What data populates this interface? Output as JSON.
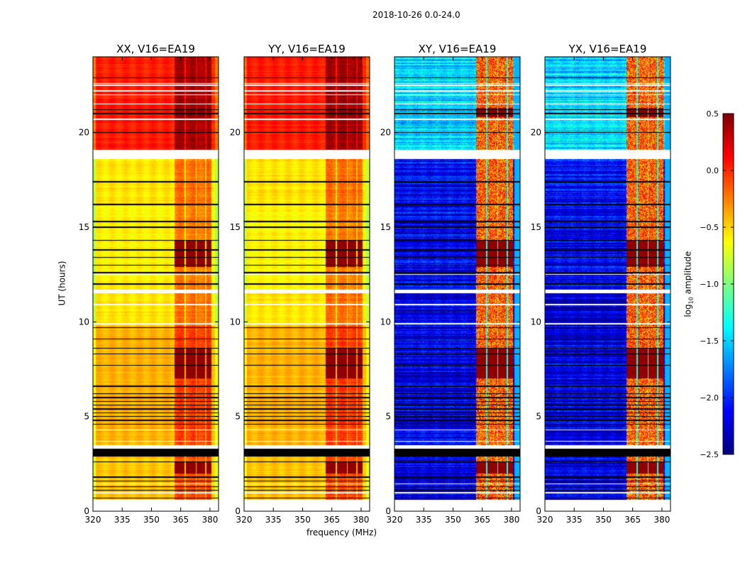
{
  "chart_data": {
    "type": "heatmap",
    "title": "2018-10-26 0.0-24.0",
    "xlabel": "frequency (MHz)",
    "ylabel": "UT (hours)",
    "xlim": [
      320,
      384.4
    ],
    "ylim": [
      0,
      24
    ],
    "xticks": [
      320,
      335,
      350,
      365,
      380
    ],
    "yticks": [
      0,
      5,
      10,
      15,
      20
    ],
    "colorbar": {
      "label": "log10 amplitude",
      "label_main": "log",
      "label_sub": "10",
      "label_rest": " amplitude",
      "range": [
        -2.5,
        0.5
      ],
      "ticks": [
        0.5,
        0.0,
        -0.5,
        -1.0,
        -1.5,
        -2.0,
        -2.5
      ],
      "tick_labels": [
        "0.5",
        "0.0",
        "−0.5",
        "−1.0",
        "−1.5",
        "−2.0",
        "−2.5"
      ],
      "colormap": "jet"
    },
    "rfi_channels_mhz": [
      [
        362,
        367
      ],
      [
        367.6,
        372.6
      ],
      [
        373.2,
        377.6
      ],
      [
        378.2,
        380.6
      ]
    ],
    "time_blocks_hours": [
      {
        "from": 0.6,
        "to": 2.9,
        "parallel": -0.45,
        "cross": -2.2
      },
      {
        "from": 3.5,
        "to": 9.8,
        "parallel": -0.4,
        "cross": -2.2
      },
      {
        "from": 9.8,
        "to": 11.5,
        "parallel": -0.55,
        "cross": -2.25
      },
      {
        "from": 11.7,
        "to": 16.2,
        "parallel": -0.6,
        "cross": -2.15
      },
      {
        "from": 16.2,
        "to": 18.6,
        "parallel": -0.55,
        "cross": -2.1
      },
      {
        "from": 19.1,
        "to": 24,
        "parallel": 0.05,
        "cross": -1.5
      }
    ],
    "rfi_strong_hours": [
      [
        2.0,
        2.6
      ],
      [
        7.0,
        8.6
      ],
      [
        12.9,
        14.3
      ],
      [
        20.8,
        21.3
      ]
    ],
    "flagged_white_hours": [
      [
        0,
        0.6
      ],
      [
        0.95,
        1.02
      ],
      [
        1.42,
        1.48
      ],
      [
        3.3,
        3.5
      ],
      [
        3.68,
        3.72
      ],
      [
        4.28,
        4.32
      ],
      [
        9.88,
        9.94
      ],
      [
        10.88,
        10.94
      ],
      [
        11.5,
        11.7
      ],
      [
        12.48,
        12.52
      ],
      [
        18.6,
        19.1
      ],
      [
        20.68,
        20.72
      ],
      [
        21.48,
        21.52
      ],
      [
        21.98,
        22.02
      ],
      [
        22.18,
        22.22
      ],
      [
        22.48,
        22.52
      ],
      [
        22.58,
        22.62
      ]
    ],
    "black_line_hours": [
      0.7,
      1.1,
      1.3,
      1.6,
      1.8,
      2.6,
      4.6,
      4.8,
      5.0,
      5.2,
      5.4,
      5.6,
      5.8,
      6.0,
      6.2,
      6.6,
      7.7,
      8.3,
      8.6,
      9.1,
      9.7,
      12.0,
      12.6,
      13.0,
      13.4,
      13.8,
      14.3,
      15.0,
      15.3,
      16.2,
      17.4,
      20.0,
      21.0,
      21.2,
      22.9
    ],
    "black_block_hours": [
      [
        2.9,
        3.3
      ]
    ],
    "panels": [
      {
        "title": "XX, V16=EA19",
        "kind": "parallel"
      },
      {
        "title": "YY, V16=EA19",
        "kind": "parallel"
      },
      {
        "title": "XY, V16=EA19",
        "kind": "cross"
      },
      {
        "title": "YX, V16=EA19",
        "kind": "cross"
      }
    ]
  }
}
